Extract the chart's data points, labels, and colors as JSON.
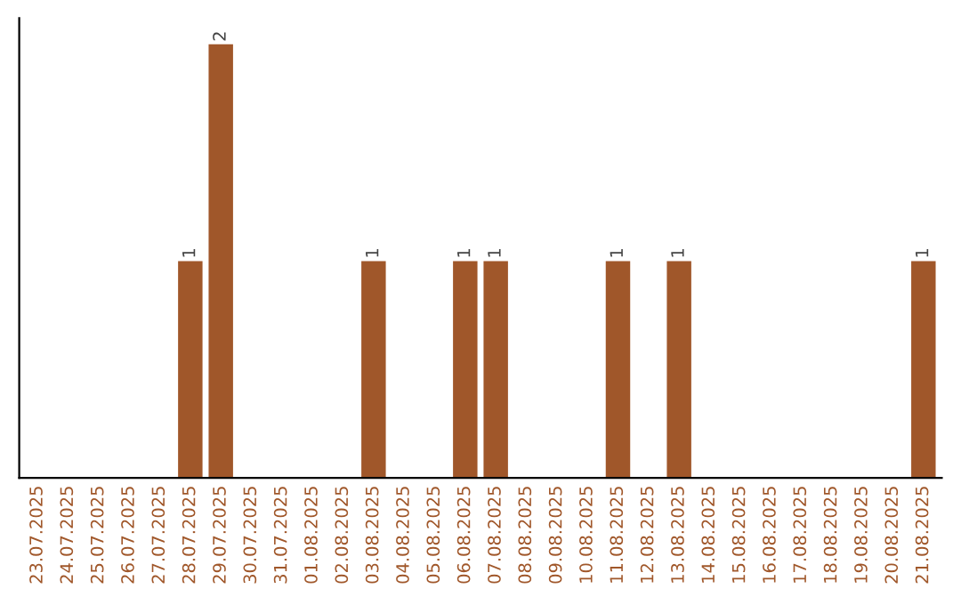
{
  "chart_data": {
    "type": "bar",
    "categories": [
      "23.07.2025",
      "24.07.2025",
      "25.07.2025",
      "26.07.2025",
      "27.07.2025",
      "28.07.2025",
      "29.07.2025",
      "30.07.2025",
      "31.07.2025",
      "01.08.2025",
      "02.08.2025",
      "03.08.2025",
      "04.08.2025",
      "05.08.2025",
      "06.08.2025",
      "07.08.2025",
      "08.08.2025",
      "09.08.2025",
      "10.08.2025",
      "11.08.2025",
      "12.08.2025",
      "13.08.2025",
      "14.08.2025",
      "15.08.2025",
      "16.08.2025",
      "17.08.2025",
      "18.08.2025",
      "19.08.2025",
      "20.08.2025",
      "21.08.2025"
    ],
    "values": [
      0,
      0,
      0,
      0,
      0,
      1,
      2,
      0,
      0,
      0,
      0,
      1,
      0,
      0,
      1,
      1,
      0,
      0,
      0,
      1,
      0,
      1,
      0,
      0,
      0,
      0,
      0,
      0,
      0,
      1
    ],
    "value_labels": [
      null,
      null,
      null,
      null,
      null,
      "1",
      "2",
      null,
      null,
      null,
      null,
      "1",
      null,
      null,
      "1",
      "1",
      null,
      null,
      null,
      "1",
      null,
      "1",
      null,
      null,
      null,
      null,
      null,
      null,
      null,
      "1"
    ],
    "color": "#a0572a",
    "tick_labels": "x",
    "grid": false
  }
}
